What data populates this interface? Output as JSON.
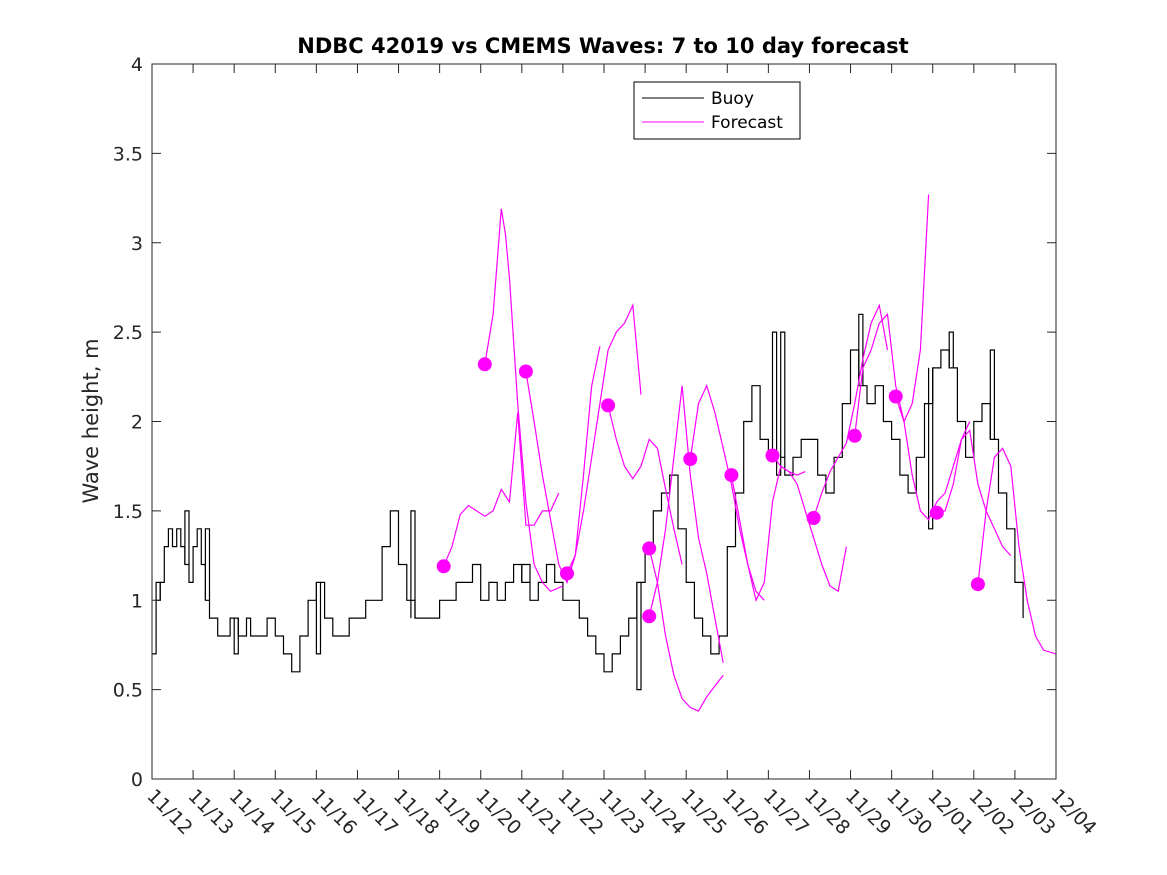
{
  "chart_data": {
    "type": "line",
    "title": "NDBC 42019 vs CMEMS Waves: 7 to 10 day forecast",
    "xlabel": "",
    "ylabel": "Wave height, m",
    "xlim": [
      0,
      22
    ],
    "ylim": [
      0,
      4
    ],
    "ytick_values": [
      0,
      0.5,
      1,
      1.5,
      2,
      2.5,
      3,
      3.5,
      4
    ],
    "ytick_labels": [
      "0",
      "0.5",
      "1",
      "1.5",
      "2",
      "2.5",
      "3",
      "3.5",
      "4"
    ],
    "xtick_labels": [
      "11/12",
      "11/13",
      "11/14",
      "11/15",
      "11/16",
      "11/17",
      "11/18",
      "11/19",
      "11/20",
      "11/21",
      "11/22",
      "11/23",
      "11/24",
      "11/25",
      "11/26",
      "11/27",
      "11/28",
      "11/29",
      "11/30",
      "12/01",
      "12/02",
      "12/03",
      "12/04"
    ],
    "legend": {
      "position": "top-center",
      "entries": [
        {
          "name": "Buoy",
          "color": "#000000"
        },
        {
          "name": "Forecast",
          "color": "#ff00ff"
        }
      ]
    },
    "buoy": {
      "name": "Buoy",
      "color": "#000000",
      "x": [
        0,
        0.1,
        0.2,
        0.3,
        0.4,
        0.5,
        0.6,
        0.7,
        0.8,
        0.9,
        1.0,
        1.1,
        1.2,
        1.3,
        1.4,
        1.5,
        1.6,
        1.7,
        1.8,
        1.9,
        2.0,
        2.1,
        2.2,
        2.3,
        2.4,
        2.5,
        2.6,
        2.7,
        2.8,
        2.9,
        3.0,
        3.2,
        3.4,
        3.6,
        3.8,
        4.0,
        4.2,
        4.4,
        4.6,
        4.8,
        5.0,
        5.2,
        5.4,
        5.6,
        5.8,
        6.0,
        6.2,
        6.4,
        6.6,
        6.8,
        7.0,
        7.2,
        7.4,
        7.6,
        7.8,
        8.0,
        8.2,
        8.4,
        8.6,
        8.8,
        9.0,
        9.2,
        9.4,
        9.6,
        9.8,
        10.0,
        10.2,
        10.4,
        10.6,
        10.8,
        11.0,
        11.2,
        11.4,
        11.6,
        11.8,
        12.0,
        12.2,
        12.4,
        12.6,
        12.8,
        13.0,
        13.2,
        13.4,
        13.6,
        13.8,
        14.0,
        14.2,
        14.4,
        14.6,
        14.8,
        15.0,
        15.1,
        15.2,
        15.3,
        15.4,
        15.6,
        15.8,
        16.0,
        16.2,
        16.4,
        16.6,
        16.8,
        17.0,
        17.2,
        17.4,
        17.6,
        17.8,
        18.0,
        18.2,
        18.4,
        18.6,
        18.8,
        19.0,
        19.2,
        19.4,
        19.6,
        19.8,
        20.0,
        20.2,
        20.4,
        20.6,
        20.8,
        21.0,
        21.2
      ],
      "values": [
        0.7,
        1.0,
        1.1,
        1.3,
        1.4,
        1.3,
        1.4,
        1.3,
        1.2,
        1.1,
        1.3,
        1.4,
        1.2,
        1.0,
        0.9,
        0.9,
        0.8,
        0.8,
        0.8,
        0.9,
        0.9,
        0.8,
        0.8,
        0.9,
        0.8,
        0.8,
        0.8,
        0.8,
        0.9,
        0.9,
        0.8,
        0.7,
        0.6,
        0.8,
        1.0,
        1.1,
        0.9,
        0.8,
        0.8,
        0.9,
        0.9,
        1.0,
        1.0,
        1.3,
        1.5,
        1.2,
        1.0,
        0.9,
        0.9,
        0.9,
        1.0,
        1.0,
        1.1,
        1.1,
        1.2,
        1.0,
        1.1,
        1.0,
        1.1,
        1.2,
        1.1,
        1.0,
        1.1,
        1.2,
        1.1,
        1.0,
        1.0,
        0.9,
        0.8,
        0.7,
        0.6,
        0.7,
        0.8,
        0.9,
        1.1,
        1.3,
        1.5,
        1.6,
        1.7,
        1.4,
        1.1,
        0.9,
        0.8,
        0.7,
        0.8,
        1.3,
        1.6,
        2.0,
        2.2,
        1.9,
        1.8,
        1.8,
        1.7,
        1.8,
        1.7,
        1.8,
        1.9,
        1.9,
        1.7,
        1.6,
        1.8,
        2.1,
        2.4,
        2.2,
        2.1,
        2.2,
        2.0,
        1.9,
        1.7,
        1.6,
        1.8,
        2.1,
        2.3,
        2.4,
        2.3,
        2.0,
        1.8,
        2.0,
        2.1,
        1.9,
        1.6,
        1.4,
        1.1,
        0.9
      ],
      "steps": [
        {
          "x0": 0.1,
          "x1": 0.2,
          "v": 1.1
        },
        {
          "x0": 0.8,
          "x1": 0.9,
          "v": 1.5
        },
        {
          "x0": 1.3,
          "x1": 1.4,
          "v": 1.4
        },
        {
          "x0": 2.0,
          "x1": 2.1,
          "v": 0.7
        },
        {
          "x0": 4.0,
          "x1": 4.1,
          "v": 0.7
        },
        {
          "x0": 6.3,
          "x1": 6.4,
          "v": 1.5
        },
        {
          "x0": 9.0,
          "x1": 9.2,
          "v": 1.2
        },
        {
          "x0": 11.8,
          "x1": 11.9,
          "v": 0.5
        },
        {
          "x0": 15.1,
          "x1": 15.2,
          "v": 2.5
        },
        {
          "x0": 15.3,
          "x1": 15.4,
          "v": 2.5
        },
        {
          "x0": 17.2,
          "x1": 17.3,
          "v": 2.6
        },
        {
          "x0": 18.9,
          "x1": 19.0,
          "v": 1.4
        },
        {
          "x0": 19.4,
          "x1": 19.5,
          "v": 2.5
        },
        {
          "x0": 20.4,
          "x1": 20.5,
          "v": 2.4
        }
      ]
    },
    "forecast_series": [
      {
        "name": "Forecast",
        "x": [
          7.1,
          7.3,
          7.5,
          7.7,
          7.9,
          8.1,
          8.3,
          8.5,
          8.7,
          8.9,
          9.1,
          9.3,
          9.5,
          9.7,
          9.9
        ],
        "values": [
          1.19,
          1.3,
          1.48,
          1.53,
          1.5,
          1.47,
          1.5,
          1.62,
          1.55,
          2.05,
          1.42,
          1.42,
          1.5,
          1.5,
          1.6
        ]
      },
      {
        "name": "Forecast",
        "x": [
          8.1,
          8.3,
          8.5,
          8.6,
          8.7,
          8.9,
          9.1,
          9.3,
          9.5,
          9.7,
          10.0
        ],
        "values": [
          2.32,
          2.6,
          3.19,
          3.05,
          2.8,
          2.1,
          1.55,
          1.2,
          1.1,
          1.05,
          1.08
        ]
      },
      {
        "name": "Forecast",
        "x": [
          9.1,
          9.3,
          9.5,
          9.7,
          9.9,
          10.1,
          10.3,
          10.5,
          10.7,
          10.9
        ],
        "values": [
          2.28,
          2.0,
          1.7,
          1.45,
          1.2,
          1.1,
          1.25,
          1.7,
          2.2,
          2.42
        ]
      },
      {
        "name": "Forecast",
        "x": [
          10.1,
          10.3,
          10.5,
          10.7,
          10.9,
          11.1,
          11.3,
          11.5,
          11.7,
          11.9
        ],
        "values": [
          1.15,
          1.25,
          1.5,
          1.8,
          2.1,
          2.4,
          2.5,
          2.55,
          2.65,
          2.15
        ]
      },
      {
        "name": "Forecast",
        "x": [
          11.1,
          11.3,
          11.5,
          11.7,
          11.9,
          12.1,
          12.3,
          12.5,
          12.7,
          12.9
        ],
        "values": [
          2.09,
          1.9,
          1.75,
          1.68,
          1.75,
          1.9,
          1.85,
          1.62,
          1.4,
          1.2
        ]
      },
      {
        "name": "Forecast",
        "x": [
          12.1,
          12.3,
          12.5,
          12.7,
          12.9,
          13.1,
          13.3,
          13.5,
          13.7,
          13.9
        ],
        "values": [
          1.29,
          1.1,
          0.8,
          0.58,
          0.45,
          0.4,
          0.38,
          0.46,
          0.52,
          0.58
        ]
      },
      {
        "name": "Forecast",
        "x": [
          12.1,
          12.3,
          12.5,
          12.7,
          12.9,
          13.1,
          13.3,
          13.5,
          13.7,
          13.9
        ],
        "values": [
          0.91,
          1.1,
          1.4,
          1.8,
          2.2,
          1.7,
          1.35,
          1.15,
          0.9,
          0.65
        ]
      },
      {
        "name": "Forecast",
        "x": [
          13.1,
          13.3,
          13.5,
          13.7,
          13.9,
          14.1,
          14.3,
          14.5,
          14.7,
          14.9
        ],
        "values": [
          1.79,
          2.1,
          2.2,
          2.05,
          1.85,
          1.65,
          1.4,
          1.2,
          1.05,
          1.0
        ]
      },
      {
        "name": "Forecast",
        "x": [
          14.1,
          14.3,
          14.5,
          14.7,
          14.9,
          15.1,
          15.3,
          15.5,
          15.7,
          15.9
        ],
        "values": [
          1.7,
          1.45,
          1.2,
          1.0,
          1.1,
          1.55,
          1.75,
          1.72,
          1.7,
          1.72
        ]
      },
      {
        "name": "Forecast",
        "x": [
          15.1,
          15.3,
          15.5,
          15.7,
          15.9,
          16.1,
          16.3,
          16.5,
          16.7,
          16.9
        ],
        "values": [
          1.81,
          1.75,
          1.72,
          1.65,
          1.5,
          1.35,
          1.2,
          1.08,
          1.05,
          1.3
        ]
      },
      {
        "name": "Forecast",
        "x": [
          16.1,
          16.3,
          16.5,
          16.7,
          16.9,
          17.1,
          17.3,
          17.5,
          17.7,
          17.9
        ],
        "values": [
          1.46,
          1.6,
          1.72,
          1.8,
          1.88,
          2.1,
          2.35,
          2.55,
          2.65,
          2.4
        ]
      },
      {
        "name": "Forecast",
        "x": [
          17.1,
          17.3,
          17.5,
          17.7,
          17.9,
          18.1,
          18.3,
          18.5,
          18.7,
          18.9
        ],
        "values": [
          1.92,
          2.3,
          2.4,
          2.55,
          2.6,
          2.2,
          2.0,
          2.1,
          2.4,
          3.27
        ]
      },
      {
        "name": "Forecast",
        "x": [
          18.1,
          18.3,
          18.5,
          18.7,
          18.9,
          19.1,
          19.3,
          19.5,
          19.7,
          19.9
        ],
        "values": [
          2.14,
          2.0,
          1.7,
          1.5,
          1.45,
          1.55,
          1.6,
          1.75,
          1.9,
          2.0
        ]
      },
      {
        "name": "Forecast",
        "x": [
          19.1,
          19.3,
          19.5,
          19.7,
          19.9,
          20.1,
          20.3,
          20.5,
          20.7,
          20.9
        ],
        "values": [
          1.49,
          1.5,
          1.65,
          1.9,
          1.95,
          1.65,
          1.5,
          1.4,
          1.3,
          1.25
        ]
      },
      {
        "name": "Forecast",
        "x": [
          20.1,
          20.3,
          20.5,
          20.7,
          20.9,
          21.1,
          21.3,
          21.5,
          21.7,
          22.0
        ],
        "values": [
          1.09,
          1.5,
          1.8,
          1.85,
          1.75,
          1.3,
          1.0,
          0.8,
          0.72,
          0.7
        ]
      }
    ],
    "forecast_markers": {
      "name": "Forecast start",
      "color": "#ff00ff",
      "x": [
        7.1,
        8.1,
        9.1,
        10.1,
        11.1,
        12.1,
        12.1,
        13.1,
        14.1,
        15.1,
        16.1,
        17.1,
        18.1,
        19.1,
        20.1
      ],
      "values": [
        1.19,
        2.32,
        2.28,
        1.15,
        2.09,
        1.29,
        0.91,
        1.79,
        1.7,
        1.81,
        1.46,
        1.92,
        2.14,
        1.49,
        1.09
      ]
    }
  }
}
